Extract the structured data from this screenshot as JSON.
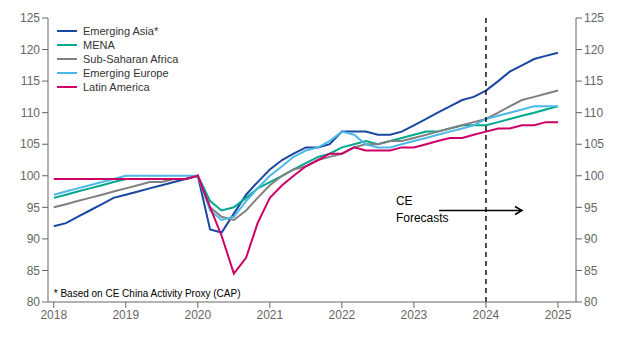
{
  "chart_data": {
    "type": "line",
    "x": [
      2018.0,
      2018.17,
      2018.33,
      2018.5,
      2018.67,
      2018.83,
      2019.0,
      2019.17,
      2019.33,
      2019.5,
      2019.67,
      2019.83,
      2020.0,
      2020.17,
      2020.33,
      2020.5,
      2020.67,
      2020.83,
      2021.0,
      2021.17,
      2021.33,
      2021.5,
      2021.67,
      2021.83,
      2022.0,
      2022.17,
      2022.33,
      2022.5,
      2022.67,
      2022.83,
      2023.0,
      2023.17,
      2023.33,
      2023.5,
      2023.67,
      2023.83,
      2024.0,
      2024.17,
      2024.33,
      2024.5,
      2024.67,
      2024.83,
      2025.0
    ],
    "series": [
      {
        "name": "Emerging Asia*",
        "color": "#1a47a0",
        "values": [
          92.0,
          92.5,
          93.5,
          94.5,
          95.5,
          96.5,
          97.0,
          97.5,
          98.0,
          98.5,
          99.0,
          99.5,
          100.0,
          91.5,
          91.0,
          94.0,
          97.0,
          99.0,
          101.0,
          102.5,
          103.5,
          104.5,
          104.5,
          105.0,
          107.0,
          107.0,
          107.0,
          106.5,
          106.5,
          107.0,
          108.0,
          109.0,
          110.0,
          111.0,
          112.0,
          112.5,
          113.5,
          115.0,
          116.5,
          117.5,
          118.5,
          119.0,
          119.5
        ]
      },
      {
        "name": "MENA",
        "color": "#00a88e",
        "values": [
          96.5,
          97.0,
          97.5,
          98.0,
          98.5,
          99.0,
          99.5,
          99.5,
          99.5,
          99.5,
          99.5,
          99.5,
          100.0,
          96.0,
          94.5,
          95.0,
          96.5,
          98.0,
          99.0,
          100.0,
          101.0,
          102.0,
          103.0,
          103.5,
          104.5,
          105.0,
          105.5,
          105.0,
          105.5,
          106.0,
          106.5,
          107.0,
          107.0,
          107.5,
          108.0,
          108.0,
          108.0,
          108.5,
          109.0,
          109.5,
          110.0,
          110.5,
          111.0
        ]
      },
      {
        "name": "Sub-Saharan Africa",
        "color": "#808080",
        "values": [
          95.0,
          95.5,
          96.0,
          96.5,
          97.0,
          97.5,
          98.0,
          98.5,
          99.0,
          99.0,
          99.5,
          99.5,
          100.0,
          95.0,
          93.5,
          93.0,
          94.5,
          96.5,
          98.5,
          100.0,
          101.0,
          101.5,
          102.5,
          103.0,
          103.5,
          104.5,
          105.0,
          105.0,
          105.5,
          105.5,
          106.0,
          106.5,
          107.0,
          107.5,
          108.0,
          108.5,
          109.0,
          110.0,
          111.0,
          112.0,
          112.5,
          113.0,
          113.5
        ]
      },
      {
        "name": "Emerging Europe",
        "color": "#4db8e8",
        "values": [
          97.0,
          97.5,
          98.0,
          98.5,
          99.0,
          99.5,
          100.0,
          100.0,
          100.0,
          100.0,
          100.0,
          100.0,
          100.0,
          94.5,
          93.0,
          93.5,
          96.0,
          98.0,
          100.0,
          101.5,
          103.0,
          104.0,
          104.5,
          105.5,
          107.0,
          106.5,
          105.0,
          104.5,
          104.5,
          105.0,
          105.5,
          106.0,
          106.5,
          107.0,
          107.5,
          108.0,
          109.0,
          109.5,
          110.0,
          110.5,
          111.0,
          111.0,
          111.0
        ]
      },
      {
        "name": "Latin America",
        "color": "#cc0066",
        "values": [
          99.5,
          99.5,
          99.5,
          99.5,
          99.5,
          99.5,
          99.5,
          99.5,
          99.5,
          99.5,
          99.5,
          99.5,
          100.0,
          95.0,
          90.5,
          84.5,
          87.0,
          92.5,
          96.5,
          98.5,
          100.0,
          101.5,
          102.5,
          103.5,
          103.5,
          104.5,
          104.0,
          104.0,
          104.0,
          104.5,
          104.5,
          105.0,
          105.5,
          106.0,
          106.0,
          106.5,
          107.0,
          107.5,
          107.5,
          108.0,
          108.0,
          108.5,
          108.5
        ]
      }
    ],
    "xlim": [
      2017.92,
      2025.25
    ],
    "xticks": [
      2018,
      2019,
      2020,
      2021,
      2022,
      2023,
      2024,
      2025
    ],
    "ylim": [
      80,
      125
    ],
    "yticks": [
      80,
      85,
      90,
      95,
      100,
      105,
      110,
      115,
      120,
      125
    ],
    "y2lim": [
      80,
      125
    ],
    "y2ticks": [
      80,
      85,
      90,
      95,
      100,
      105,
      110,
      115,
      120,
      125
    ],
    "grid": false,
    "legend": "upper left",
    "forecast_x": 2024.0,
    "annotation": {
      "text": "CE\nForecasts",
      "x": 2022.75,
      "y": 94.5,
      "arrow_x_start": 2023.35,
      "arrow_x_end": 2024.5,
      "arrow_y": 94.5
    },
    "footnote": "* Based on CE China Activity Proxy (CAP)"
  }
}
